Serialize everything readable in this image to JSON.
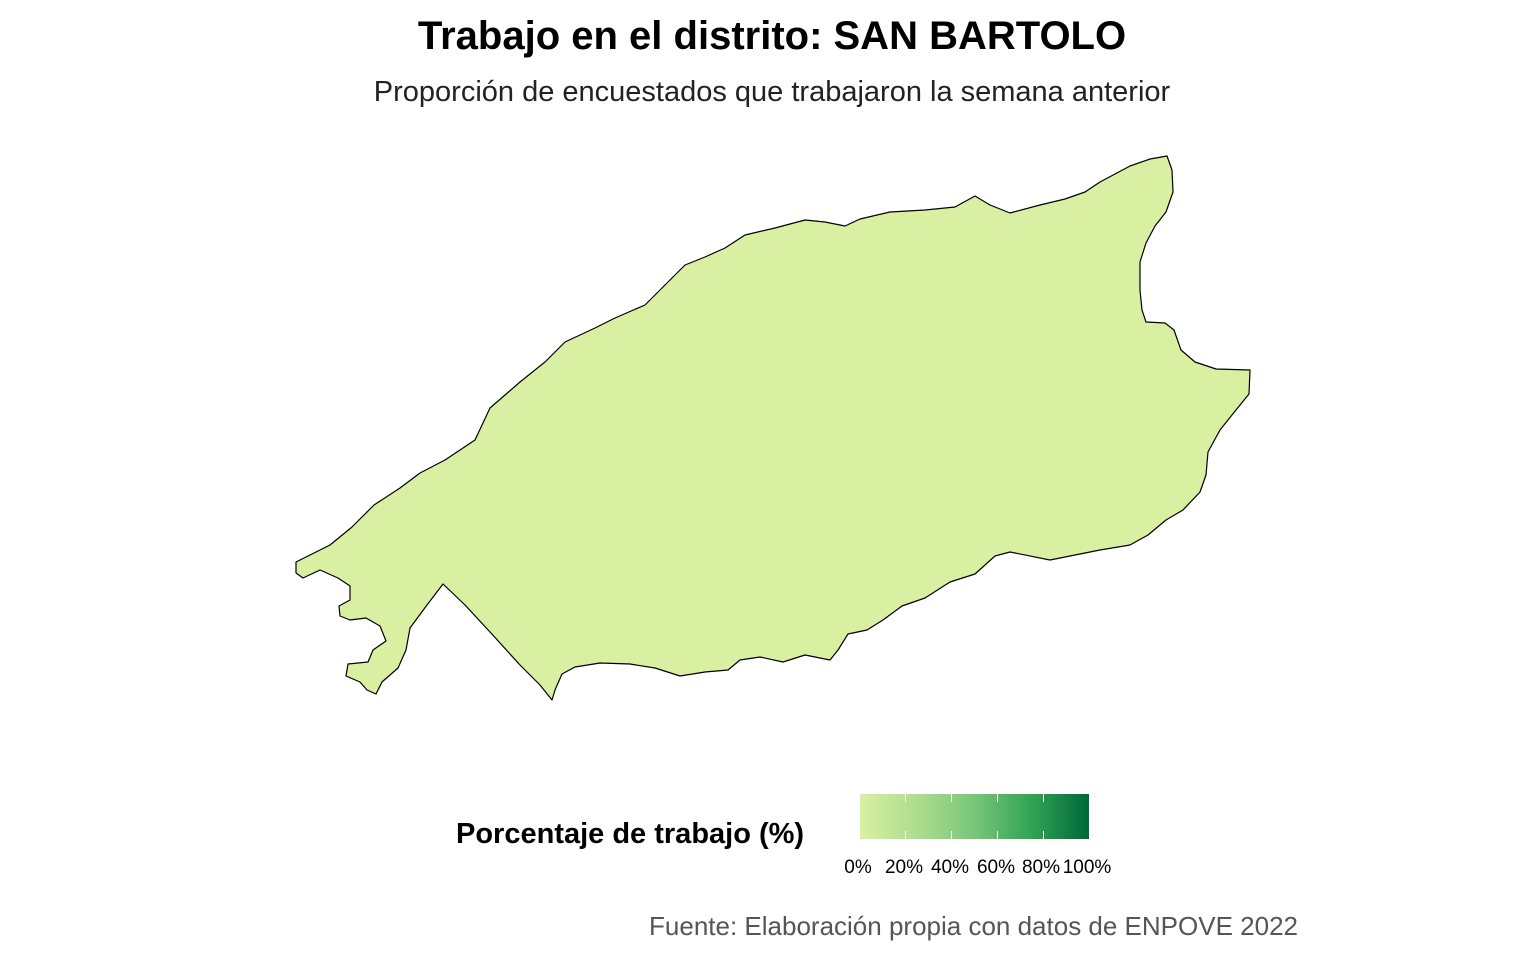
{
  "title": "Trabajo en el distrito: SAN BARTOLO",
  "subtitle": "Proporción de encuestados que trabajaron la semana anterior",
  "legend": {
    "title": "Porcentaje de trabajo (%)",
    "labels": [
      "0%",
      "20%",
      "40%",
      "60%",
      "80%",
      "100%"
    ],
    "colors": [
      "#d9f0a3",
      "#addd8e",
      "#78c679",
      "#31a354",
      "#006837"
    ]
  },
  "region": {
    "name": "SAN BARTOLO",
    "fill": "#d9f0a3"
  },
  "caption": "Fuente: Elaboración propia con datos de ENPOVE 2022"
}
